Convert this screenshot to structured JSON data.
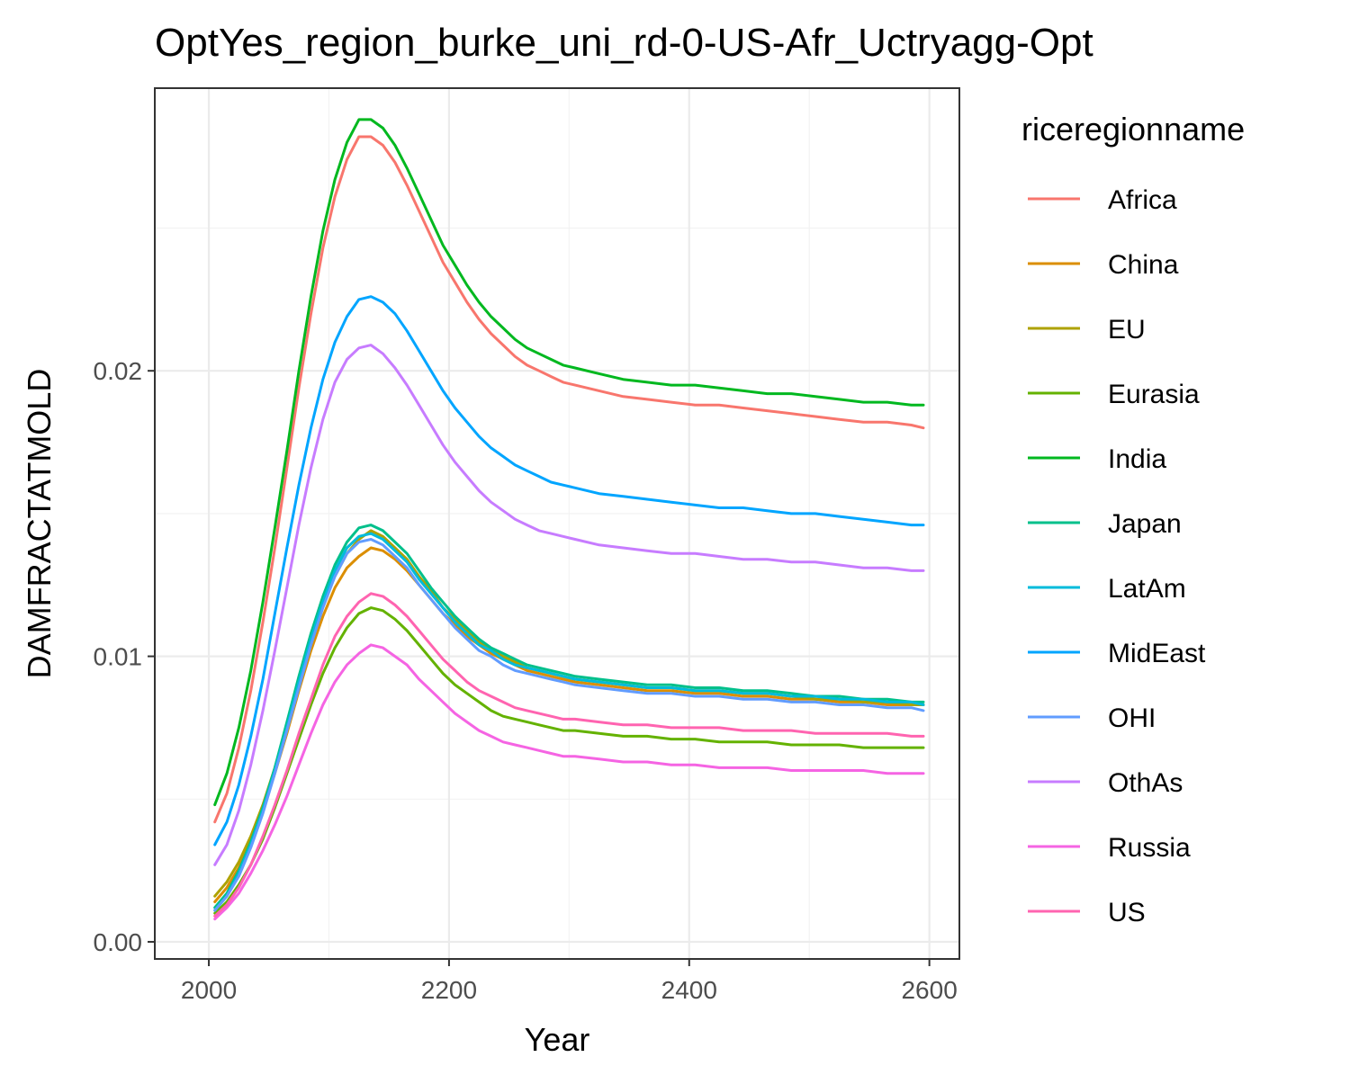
{
  "chart_data": {
    "type": "line",
    "title": "OptYes_region_burke_uni_rd-0-US-Afr_Uctryagg-Opt",
    "xlabel": "Year",
    "ylabel": "DAMFRACTATMOLD",
    "xlim": [
      1955,
      2625
    ],
    "ylim": [
      -0.0006,
      0.0299
    ],
    "x_ticks": [
      2000,
      2200,
      2400,
      2600
    ],
    "x_tick_labels": [
      "2000",
      "2200",
      "2400",
      "2600"
    ],
    "y_ticks": [
      0,
      0.01,
      0.02
    ],
    "y_tick_labels": [
      "0.00",
      "0.01",
      "0.02"
    ],
    "grid": true,
    "legend": {
      "title": "riceregionname",
      "position": "right"
    },
    "x": [
      2005,
      2015,
      2025,
      2035,
      2045,
      2055,
      2065,
      2075,
      2085,
      2095,
      2105,
      2115,
      2125,
      2135,
      2145,
      2155,
      2165,
      2175,
      2185,
      2195,
      2205,
      2215,
      2225,
      2235,
      2245,
      2255,
      2265,
      2275,
      2285,
      2295,
      2305,
      2325,
      2345,
      2365,
      2385,
      2405,
      2425,
      2445,
      2465,
      2485,
      2505,
      2525,
      2545,
      2565,
      2585,
      2595
    ],
    "series": [
      {
        "name": "Africa",
        "color": "#F8766D",
        "values": [
          0.0042,
          0.0052,
          0.0068,
          0.0088,
          0.0112,
          0.0138,
          0.0166,
          0.0194,
          0.022,
          0.0243,
          0.0261,
          0.0274,
          0.0282,
          0.0282,
          0.0279,
          0.0273,
          0.0265,
          0.0256,
          0.0247,
          0.0238,
          0.0231,
          0.0224,
          0.0218,
          0.0213,
          0.0209,
          0.0205,
          0.0202,
          0.02,
          0.0198,
          0.0196,
          0.0195,
          0.0193,
          0.0191,
          0.019,
          0.0189,
          0.0188,
          0.0188,
          0.0187,
          0.0186,
          0.0185,
          0.0184,
          0.0183,
          0.0182,
          0.0182,
          0.0181,
          0.018
        ]
      },
      {
        "name": "China",
        "color": "#DB8E00",
        "values": [
          0.0014,
          0.0019,
          0.0026,
          0.0035,
          0.0046,
          0.0059,
          0.0073,
          0.0088,
          0.0102,
          0.0114,
          0.0124,
          0.0131,
          0.0135,
          0.0138,
          0.0137,
          0.0134,
          0.013,
          0.0125,
          0.012,
          0.0115,
          0.0111,
          0.0107,
          0.0104,
          0.0101,
          0.0099,
          0.0097,
          0.0095,
          0.0094,
          0.0093,
          0.0092,
          0.0091,
          0.009,
          0.0089,
          0.0088,
          0.0088,
          0.0087,
          0.0087,
          0.0086,
          0.0086,
          0.0085,
          0.0085,
          0.0084,
          0.0084,
          0.0083,
          0.0083,
          0.0083
        ]
      },
      {
        "name": "EU",
        "color": "#AEA200",
        "values": [
          0.0016,
          0.0021,
          0.0028,
          0.0037,
          0.0048,
          0.0061,
          0.0076,
          0.0091,
          0.0105,
          0.0118,
          0.0128,
          0.0136,
          0.0141,
          0.0144,
          0.0142,
          0.0138,
          0.0134,
          0.0128,
          0.0123,
          0.0117,
          0.0113,
          0.0109,
          0.0105,
          0.0102,
          0.01,
          0.0098,
          0.0096,
          0.0095,
          0.0094,
          0.0093,
          0.0092,
          0.0091,
          0.009,
          0.0089,
          0.0089,
          0.0088,
          0.0088,
          0.0087,
          0.0087,
          0.0086,
          0.0085,
          0.0085,
          0.0084,
          0.0084,
          0.0083,
          0.0083
        ]
      },
      {
        "name": "Eurasia",
        "color": "#64B200",
        "values": [
          0.001,
          0.0014,
          0.002,
          0.0027,
          0.0036,
          0.0047,
          0.0059,
          0.0071,
          0.0083,
          0.0094,
          0.0103,
          0.011,
          0.0115,
          0.0117,
          0.0116,
          0.0113,
          0.0109,
          0.0104,
          0.0099,
          0.0094,
          0.009,
          0.0087,
          0.0084,
          0.0081,
          0.0079,
          0.0078,
          0.0077,
          0.0076,
          0.0075,
          0.0074,
          0.0074,
          0.0073,
          0.0072,
          0.0072,
          0.0071,
          0.0071,
          0.007,
          0.007,
          0.007,
          0.0069,
          0.0069,
          0.0069,
          0.0068,
          0.0068,
          0.0068,
          0.0068
        ]
      },
      {
        "name": "India",
        "color": "#00B81F",
        "values": [
          0.0048,
          0.0059,
          0.0075,
          0.0095,
          0.0119,
          0.0145,
          0.0172,
          0.02,
          0.0226,
          0.0249,
          0.0267,
          0.028,
          0.0288,
          0.0288,
          0.0285,
          0.0279,
          0.0271,
          0.0262,
          0.0253,
          0.0244,
          0.0237,
          0.023,
          0.0224,
          0.0219,
          0.0215,
          0.0211,
          0.0208,
          0.0206,
          0.0204,
          0.0202,
          0.0201,
          0.0199,
          0.0197,
          0.0196,
          0.0195,
          0.0195,
          0.0194,
          0.0193,
          0.0192,
          0.0192,
          0.0191,
          0.019,
          0.0189,
          0.0189,
          0.0188,
          0.0188
        ]
      },
      {
        "name": "Japan",
        "color": "#00C08B",
        "values": [
          0.0012,
          0.0017,
          0.0025,
          0.0035,
          0.0047,
          0.0061,
          0.0077,
          0.0093,
          0.0108,
          0.0121,
          0.0132,
          0.014,
          0.0145,
          0.0146,
          0.0144,
          0.014,
          0.0136,
          0.013,
          0.0124,
          0.0119,
          0.0114,
          0.011,
          0.0106,
          0.0103,
          0.0101,
          0.0099,
          0.0097,
          0.0096,
          0.0095,
          0.0094,
          0.0093,
          0.0092,
          0.0091,
          0.009,
          0.009,
          0.0089,
          0.0089,
          0.0088,
          0.0088,
          0.0087,
          0.0086,
          0.0086,
          0.0085,
          0.0085,
          0.0084,
          0.0084
        ]
      },
      {
        "name": "LatAm",
        "color": "#00BBDB",
        "values": [
          0.0011,
          0.0016,
          0.0024,
          0.0034,
          0.0046,
          0.006,
          0.0075,
          0.0091,
          0.0106,
          0.0119,
          0.013,
          0.0138,
          0.0142,
          0.0143,
          0.0141,
          0.0137,
          0.0133,
          0.0127,
          0.0122,
          0.0117,
          0.0112,
          0.0108,
          0.0104,
          0.0102,
          0.0099,
          0.0097,
          0.0096,
          0.0095,
          0.0094,
          0.0093,
          0.0092,
          0.0091,
          0.009,
          0.0089,
          0.0089,
          0.0088,
          0.0088,
          0.0087,
          0.0087,
          0.0086,
          0.0086,
          0.0085,
          0.0085,
          0.0084,
          0.0084,
          0.0083
        ]
      },
      {
        "name": "MidEast",
        "color": "#00A5FF",
        "values": [
          0.0034,
          0.0042,
          0.0055,
          0.0072,
          0.0092,
          0.0115,
          0.0138,
          0.016,
          0.018,
          0.0197,
          0.021,
          0.0219,
          0.0225,
          0.0226,
          0.0224,
          0.022,
          0.0214,
          0.0207,
          0.02,
          0.0193,
          0.0187,
          0.0182,
          0.0177,
          0.0173,
          0.017,
          0.0167,
          0.0165,
          0.0163,
          0.0161,
          0.016,
          0.0159,
          0.0157,
          0.0156,
          0.0155,
          0.0154,
          0.0153,
          0.0152,
          0.0152,
          0.0151,
          0.015,
          0.015,
          0.0149,
          0.0148,
          0.0147,
          0.0146,
          0.0146
        ]
      },
      {
        "name": "OHI",
        "color": "#619CFF",
        "values": [
          0.0011,
          0.0016,
          0.0023,
          0.0033,
          0.0045,
          0.0059,
          0.0074,
          0.0089,
          0.0104,
          0.0117,
          0.0128,
          0.0136,
          0.014,
          0.0141,
          0.0139,
          0.0135,
          0.0131,
          0.0125,
          0.012,
          0.0115,
          0.011,
          0.0106,
          0.0102,
          0.01,
          0.0097,
          0.0095,
          0.0094,
          0.0093,
          0.0092,
          0.0091,
          0.009,
          0.0089,
          0.0088,
          0.0087,
          0.0087,
          0.0086,
          0.0086,
          0.0085,
          0.0085,
          0.0084,
          0.0084,
          0.0083,
          0.0083,
          0.0082,
          0.0082,
          0.0081
        ]
      },
      {
        "name": "OthAs",
        "color": "#C77CFF",
        "values": [
          0.0027,
          0.0034,
          0.0046,
          0.0062,
          0.0081,
          0.0102,
          0.0124,
          0.0146,
          0.0166,
          0.0183,
          0.0196,
          0.0204,
          0.0208,
          0.0209,
          0.0206,
          0.0201,
          0.0195,
          0.0188,
          0.0181,
          0.0174,
          0.0168,
          0.0163,
          0.0158,
          0.0154,
          0.0151,
          0.0148,
          0.0146,
          0.0144,
          0.0143,
          0.0142,
          0.0141,
          0.0139,
          0.0138,
          0.0137,
          0.0136,
          0.0136,
          0.0135,
          0.0134,
          0.0134,
          0.0133,
          0.0133,
          0.0132,
          0.0131,
          0.0131,
          0.013,
          0.013
        ]
      },
      {
        "name": "Russia",
        "color": "#F564E3",
        "values": [
          0.0008,
          0.0012,
          0.0017,
          0.0024,
          0.0032,
          0.0041,
          0.0051,
          0.0062,
          0.0073,
          0.0083,
          0.0091,
          0.0097,
          0.0101,
          0.0104,
          0.0103,
          0.01,
          0.0097,
          0.0092,
          0.0088,
          0.0084,
          0.008,
          0.0077,
          0.0074,
          0.0072,
          0.007,
          0.0069,
          0.0068,
          0.0067,
          0.0066,
          0.0065,
          0.0065,
          0.0064,
          0.0063,
          0.0063,
          0.0062,
          0.0062,
          0.0061,
          0.0061,
          0.0061,
          0.006,
          0.006,
          0.006,
          0.006,
          0.0059,
          0.0059,
          0.0059
        ]
      },
      {
        "name": "US",
        "color": "#FF64B0",
        "values": [
          0.0009,
          0.0013,
          0.0019,
          0.0027,
          0.0037,
          0.0048,
          0.006,
          0.0073,
          0.0085,
          0.0097,
          0.0107,
          0.0114,
          0.0119,
          0.0122,
          0.0121,
          0.0118,
          0.0114,
          0.0109,
          0.0104,
          0.0099,
          0.0095,
          0.0091,
          0.0088,
          0.0086,
          0.0084,
          0.0082,
          0.0081,
          0.008,
          0.0079,
          0.0078,
          0.0078,
          0.0077,
          0.0076,
          0.0076,
          0.0075,
          0.0075,
          0.0075,
          0.0074,
          0.0074,
          0.0074,
          0.0073,
          0.0073,
          0.0073,
          0.0073,
          0.0072,
          0.0072
        ]
      }
    ]
  }
}
